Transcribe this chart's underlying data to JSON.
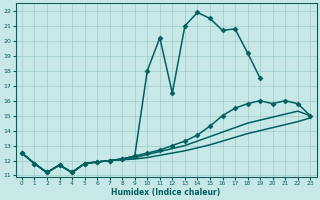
{
  "xlabel": "Humidex (Indice chaleur)",
  "ylabel": "",
  "background_color": "#c8e8e8",
  "grid_color": "#a0cccc",
  "line_color": "#006060",
  "xlim": [
    -0.5,
    23.5
  ],
  "ylim": [
    11,
    22.5
  ],
  "xticks": [
    0,
    1,
    2,
    3,
    4,
    5,
    6,
    7,
    8,
    9,
    10,
    11,
    12,
    13,
    14,
    15,
    16,
    17,
    18,
    19,
    20,
    21,
    22,
    23
  ],
  "yticks": [
    11,
    12,
    13,
    14,
    15,
    16,
    17,
    18,
    19,
    20,
    21,
    22
  ],
  "series": [
    {
      "x": [
        0,
        1,
        2,
        3,
        4,
        5,
        6,
        7,
        8,
        9,
        10,
        11,
        12,
        13,
        14,
        15,
        16,
        17,
        18,
        19
      ],
      "y": [
        12.5,
        11.8,
        11.2,
        11.7,
        11.2,
        11.8,
        11.9,
        12.0,
        12.1,
        12.3,
        18.0,
        20.2,
        16.5,
        21.0,
        21.9,
        21.5,
        20.7,
        20.8,
        19.2,
        17.5
      ],
      "marker": "D",
      "markersize": 2.5,
      "linewidth": 1.1
    },
    {
      "x": [
        0,
        1,
        2,
        3,
        4,
        5,
        6,
        7,
        8,
        9,
        10,
        11,
        12,
        13,
        14,
        15,
        16,
        17,
        18,
        19,
        20,
        21,
        22,
        23
      ],
      "y": [
        12.5,
        11.8,
        11.2,
        11.7,
        11.2,
        11.8,
        11.9,
        12.0,
        12.1,
        12.3,
        12.5,
        12.7,
        13.0,
        13.3,
        13.7,
        14.3,
        15.0,
        15.5,
        15.8,
        16.0,
        15.8,
        16.0,
        15.8,
        15.0
      ],
      "marker": "D",
      "markersize": 2.5,
      "linewidth": 1.1
    },
    {
      "x": [
        0,
        1,
        2,
        3,
        4,
        5,
        6,
        7,
        8,
        9,
        10,
        11,
        12,
        13,
        14,
        15,
        16,
        17,
        18,
        19,
        20,
        21,
        22,
        23
      ],
      "y": [
        12.5,
        11.8,
        11.2,
        11.7,
        11.2,
        11.8,
        11.9,
        12.0,
        12.1,
        12.2,
        12.4,
        12.6,
        12.8,
        13.0,
        13.3,
        13.6,
        13.9,
        14.2,
        14.5,
        14.7,
        14.9,
        15.1,
        15.3,
        15.0
      ],
      "marker": null,
      "markersize": 0,
      "linewidth": 1.1
    },
    {
      "x": [
        0,
        1,
        2,
        3,
        4,
        5,
        6,
        7,
        8,
        9,
        10,
        11,
        12,
        13,
        14,
        15,
        16,
        17,
        18,
        19,
        20,
        21,
        22,
        23
      ],
      "y": [
        12.5,
        11.8,
        11.2,
        11.7,
        11.2,
        11.8,
        11.9,
        12.0,
        12.05,
        12.1,
        12.2,
        12.35,
        12.5,
        12.65,
        12.85,
        13.05,
        13.3,
        13.55,
        13.8,
        14.0,
        14.2,
        14.4,
        14.6,
        14.85
      ],
      "marker": null,
      "markersize": 0,
      "linewidth": 1.1
    }
  ]
}
